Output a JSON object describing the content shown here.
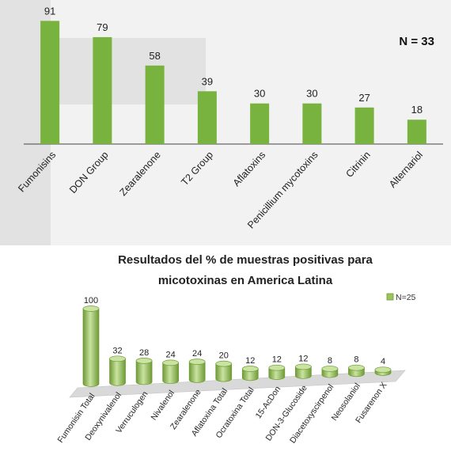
{
  "chart_data": [
    {
      "type": "bar",
      "title": "",
      "xlabel": "",
      "ylabel": "",
      "annotation": "N = 33",
      "categories": [
        "Fumonisins",
        "DON Group",
        "Zearalenone",
        "T2 Group",
        "Aflatoxins",
        "Penicillium mycotoxins",
        "Citrinin",
        "Alternariol"
      ],
      "values": [
        91,
        79,
        58,
        39,
        30,
        30,
        27,
        18
      ],
      "ylim": [
        0,
        100
      ],
      "grid": false,
      "legend": "none",
      "colors": {
        "bar": "#79b33f",
        "background": "#f2f2f2",
        "shade": "#e2e2e2",
        "axis": "#444444"
      }
    },
    {
      "type": "bar",
      "title": "Resultados del % de muestras positivas para micotoxinas en America Latina",
      "title_lines": [
        "Resultados del % de muestras positivas para",
        "micotoxinas en America Latina"
      ],
      "xlabel": "",
      "ylabel": "",
      "categories": [
        "Fumonisin Total",
        "Deoxynivalenol",
        "Verruculogen",
        "Nivalenol",
        "Zearalenone",
        "Aflatoxina Total",
        "Ocratoxina Total",
        "15-AcDon",
        "DON-3-Glucoside",
        "Diacetoxyscirpenol",
        "Neosolaniol",
        "Fusarenon X"
      ],
      "series": [
        {
          "name": "N=25",
          "values": [
            100,
            32,
            28,
            24,
            24,
            20,
            12,
            12,
            12,
            8,
            8,
            4
          ]
        }
      ],
      "ylim": [
        0,
        100
      ],
      "grid": false,
      "legend": "top-right",
      "style": "3d-cylinder",
      "colors": {
        "bar": "#9bc55c",
        "bar_dark": "#6f9a36",
        "bar_light": "#c9e3a0",
        "floor": "#d9d9d9"
      }
    }
  ]
}
